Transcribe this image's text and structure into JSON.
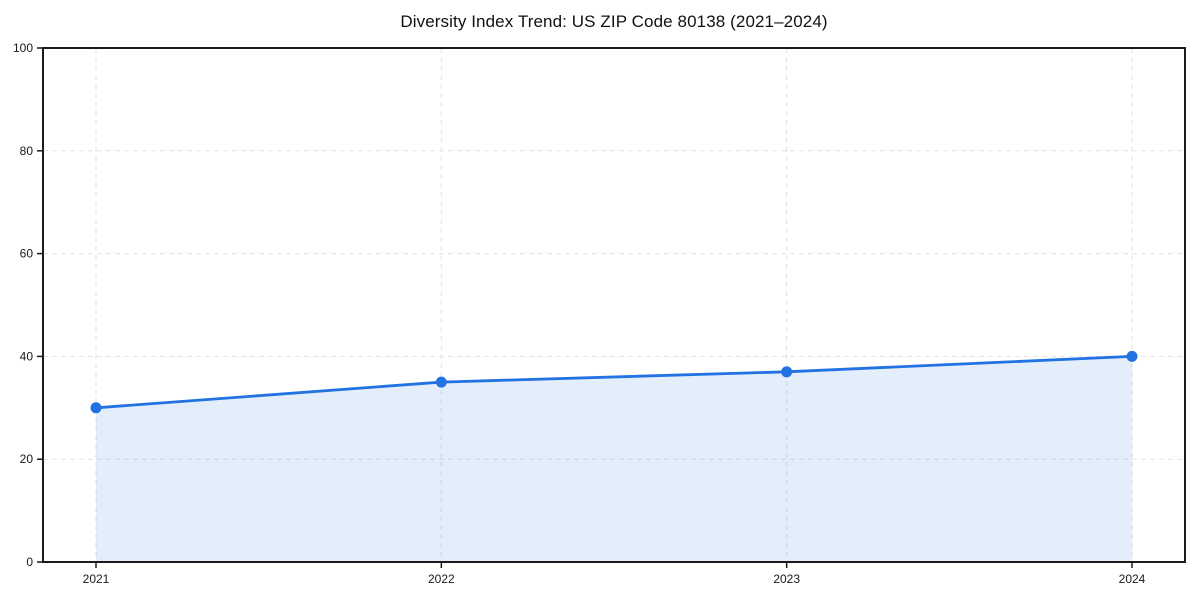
{
  "chart_data": {
    "type": "area",
    "title": "Diversity Index Trend: US ZIP Code 80138 (2021–2024)",
    "categories": [
      "2021",
      "2022",
      "2023",
      "2024"
    ],
    "series": [
      {
        "name": "Diversity Index",
        "values": [
          30,
          35,
          37,
          40
        ]
      }
    ],
    "xlabel": "",
    "ylabel": "",
    "ylim": [
      0,
      100
    ],
    "yticks": [
      0,
      20,
      40,
      60,
      80,
      100
    ],
    "grid": true,
    "grid_style": "dashed",
    "legend_position": "none",
    "colors": {
      "line": "#2272E2",
      "marker": "#2272E2",
      "fill": "rgba(34,114,226,0.12)",
      "grid": "#e2e2e2",
      "spine": "#1a1a1a",
      "tick_label": "#1a1a1a",
      "title": "#111111"
    }
  }
}
